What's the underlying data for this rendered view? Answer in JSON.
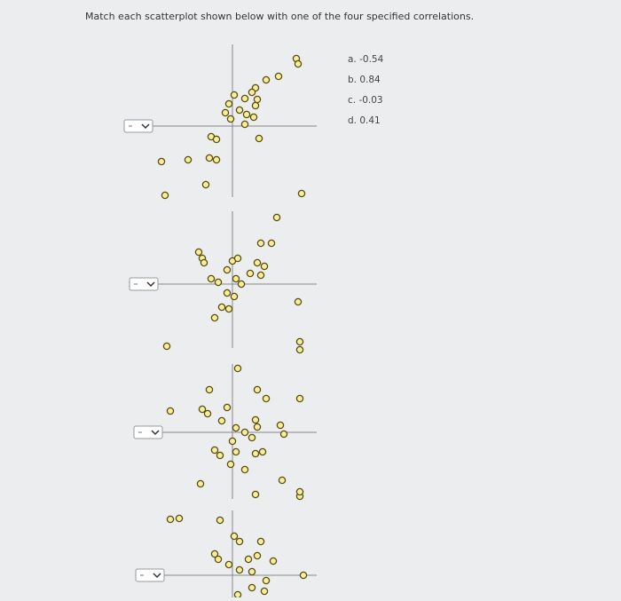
{
  "question": "Match each scatterplot shown below with one of the four specified correlations.",
  "options": [
    "a. -0.54",
    "b. 0.84",
    "c. -0.03",
    "d. 0.41"
  ],
  "scatterplots": [
    {
      "x": [
        7.2,
        7.4,
        5.2,
        3.8,
        2.6,
        2.2,
        0.2,
        1.4,
        2.8,
        -0.4,
        2.6,
        0.8,
        -0.8,
        1.6,
        -0.2,
        2.4,
        1.4,
        -2.4,
        -1.8,
        3,
        -5,
        -2.6,
        -1.8,
        -8,
        -3,
        -7.6
      ],
      "y": [
        7.6,
        7,
        5.6,
        5.2,
        4.3,
        3.8,
        3.5,
        3.1,
        3,
        2.5,
        2.3,
        1.8,
        1.5,
        1.3,
        0.8,
        1,
        0.2,
        -1.2,
        -1.5,
        -1.4,
        -3.8,
        -3.6,
        -3.8,
        -4,
        -6.6,
        -7.8
      ]
    },
    {
      "x": [
        7.8,
        5,
        4.4,
        3.2,
        -3.8,
        -3.4,
        -3.2,
        0,
        0.6,
        2.8,
        3.6,
        -0.6,
        2,
        3.2,
        -2.4,
        -1.6,
        0.4,
        1,
        -0.6,
        0.2,
        -1.2,
        -0.4,
        -2,
        7.4,
        -7.4,
        7.6
      ],
      "y": [
        10.2,
        7.5,
        4.6,
        4.6,
        3.6,
        2.9,
        2.4,
        2.6,
        2.9,
        2.4,
        2,
        1.6,
        1.2,
        1,
        0.6,
        0.2,
        0.6,
        0,
        -1,
        -1.4,
        -2.6,
        -2.8,
        -3.8,
        -2,
        -7,
        -7.4
      ]
    },
    {
      "x": [
        7.6,
        0.6,
        2.8,
        3.8,
        7.6,
        -2.6,
        -3.4,
        -2.8,
        -0.6,
        -7,
        -1.2,
        2.6,
        2.8,
        0.4,
        1.4,
        2.2,
        5.4,
        5.8,
        0,
        -2,
        -1.4,
        0.4,
        2.6,
        3.4,
        -0.2,
        1.4,
        -3.6,
        2.6,
        5.6,
        7.6,
        -7
      ],
      "y": [
        10.2,
        7.2,
        4.8,
        3.8,
        3.8,
        4.8,
        2.6,
        2.1,
        2.8,
        2.4,
        1.3,
        1.4,
        0.6,
        0.5,
        0,
        -0.6,
        0.8,
        -0.2,
        -1,
        -2,
        -2.6,
        -2.2,
        -2.4,
        -2.2,
        -3.6,
        -4.2,
        -5.8,
        -7,
        -5.4,
        -7.2,
        -9.8
      ]
    },
    {
      "x": [
        7.6,
        -1.4,
        0.8,
        0.2,
        3.2,
        -2,
        -1.6,
        1.8,
        2.8,
        4.6,
        0.8,
        2.2,
        -0.4,
        8,
        3.8,
        2.2,
        3.6,
        0.6,
        -6
      ],
      "y": [
        9.4,
        6.2,
        3.8,
        4.4,
        3.8,
        2.4,
        1.8,
        1.8,
        2.2,
        1.6,
        0.6,
        0.4,
        1.2,
        0,
        -0.6,
        -1.4,
        -1.8,
        -2.2,
        6.4
      ]
    }
  ]
}
